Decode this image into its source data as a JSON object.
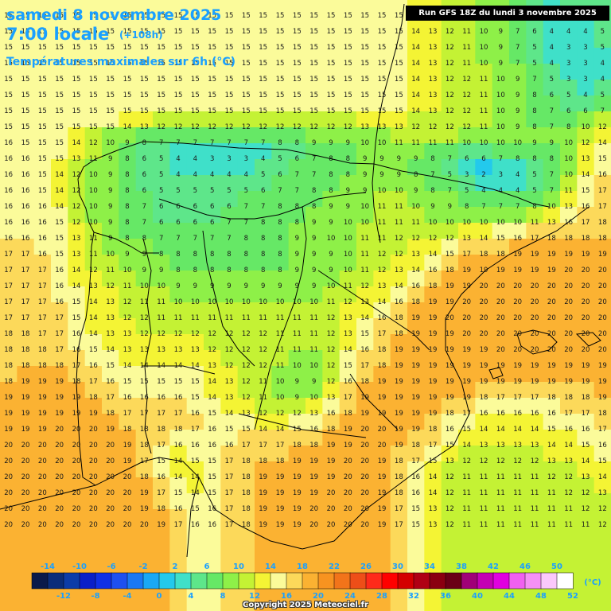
{
  "header": {
    "date": "samedi 8 novembre 2025",
    "time": "7:00 locale",
    "lead": "(+108h)",
    "subtitle": "Températures maximales sur 6h (°C)"
  },
  "run_info": "Run GFS 18Z du lundi 3 novembre 2025",
  "copyright": "Copyright 2025 Meteociel.fr",
  "legend": {
    "unit": "(°C)",
    "values": [
      -14,
      -12,
      -10,
      -8,
      -6,
      -4,
      -2,
      0,
      2,
      4,
      6,
      8,
      10,
      12,
      14,
      16,
      18,
      20,
      22,
      24,
      26,
      28,
      30,
      32,
      34,
      36,
      38,
      40,
      42,
      44,
      46,
      48,
      50,
      52
    ],
    "colors": [
      "#0a1a4a",
      "#0a2d7a",
      "#0c3ca8",
      "#0a1fc8",
      "#1030e6",
      "#1e50f0",
      "#1a78f5",
      "#1aa8f5",
      "#23c9ec",
      "#3fe0c9",
      "#5ee68a",
      "#66e866",
      "#8ef048",
      "#c4f234",
      "#f4f434",
      "#fbfb9a",
      "#fcd95a",
      "#fbb232",
      "#f79320",
      "#f2741a",
      "#ee4e18",
      "#ff2a1a",
      "#ff0000",
      "#d40000",
      "#b00014",
      "#8a0010",
      "#6a0016",
      "#a00078",
      "#c400b4",
      "#e000e0",
      "#f060f0",
      "#f590f5",
      "#fbc8fb",
      "#ffffff"
    ]
  },
  "map_data": {
    "grid": [
      "15 15 15 15 15 15 15 15 15 15 15 15 15 15 15 15 15 15 15 15 15 15 15 15 14 13 12 11 10 9 7 6 4 5 5 6",
      "15 15 15 15 15 15 15 15 15 15 15 15 15 15 15 15 15 15 15 15 15 15 15 15 14 13 12 11 10 9 7 6 4 4 4 5",
      "15 15 15 15 15 15 15 15 15 15 15 15 15 15 15 15 15 15 15 15 15 15 15 15 14 13 12 11 10 9 7 5 4 3 3 5",
      "15 15 15 15 15 15 15 15 15 15 15 15 15 15 15 15 15 15 15 15 15 15 15 15 14 13 12 11 10 9 7 5 4 3 3 4",
      "15 15 15 15 15 15 15 15 15 15 15 15 15 15 15 15 15 15 15 15 15 15 15 15 14 13 12 12 11 10 9 7 5 3 3 4",
      "15 15 15 15 15 15 15 15 15 15 15 15 15 15 15 15 15 15 15 15 15 15 15 15 14 13 12 12 11 10 9 8 6 5 4 5",
      "15 15 15 15 15 15 15 15 15 15 15 15 15 15 15 15 15 15 15 15 15 15 15 15 14 13 12 12 11 10 9 8 7 6 6 7",
      "15 15 15 15 15 15 15 14 13 12 12 12 12 12 12 12 12 12 12 12 12 13 13 13 12 12 12 12 11 10 9 8 7 8 10 12",
      "16 15 15 15 14 12 10 9 8 7 7 7 7 7 7 7 8 8 9 9 9 10 10 11 11 11 11 10 10 10 10 9 9 10 12 14",
      "16 16 15 15 13 11 9 8 6 5 4 4 3 3 3 4 5 6 7 8 8 9 9 9 9 8 7 6 6 7 8 8 8 10 13 15",
      "16 16 15 14 12 10 9 8 6 5 4 4 4 4 4 5 6 7 7 8 8 9 9 9 8 7 5 3 2 3 4 5 7 10 14 16",
      "16 16 15 14 12 10 9 8 6 5 5 5 5 5 5 6 7 7 8 8 9 9 10 10 9 8 7 5 4 4 4 5 7 11 15 17",
      "16 16 16 14 12 10 9 8 7 6 6 6 6 6 7 7 8 8 8 9 9 10 11 11 10 9 9 8 7 7 7 8 10 13 16 17",
      "16 16 16 15 12 10 9 8 7 6 6 6 6 7 7 8 8 8 9 9 10 10 11 11 11 10 10 10 10 10 10 11 13 16 17 18",
      "16 16 16 15 13 11 9 8 8 7 7 7 7 7 8 8 8 9 9 10 10 11 11 12 12 12 12 13 14 15 16 17 18 18 18 18",
      "17 17 16 15 13 11 10 9 9 8 8 8 8 8 8 8 8 9 9 9 10 11 12 12 13 14 15 17 18 18 19 19 19 19 19 19",
      "17 17 17 16 14 12 11 10 9 9 8 8 8 8 8 8 8 9 9 9 10 11 12 13 14 16 18 19 19 19 19 19 19 20 20 20",
      "17 17 17 16 14 13 12 11 10 10 9 9 9 9 9 9 9 9 9 10 11 12 13 14 16 18 19 19 20 20 20 20 20 20 20 20",
      "17 17 17 16 15 14 13 12 11 11 10 10 10 10 10 10 10 10 10 11 12 13 14 16 18 19 19 20 20 20 20 20 20 20 20 20",
      "17 17 17 17 15 14 13 12 12 11 11 11 11 11 11 11 11 11 11 12 13 14 16 18 19 19 20 20 20 20 20 20 20 20 20 20",
      "18 18 17 17 16 14 13 13 12 12 12 12 12 12 12 12 11 11 11 12 13 15 17 18 19 19 19 20 20 20 20 20 20 20 20 20",
      "18 18 18 17 16 15 14 13 13 13 13 13 12 12 12 12 11 11 11 12 14 16 18 19 19 19 19 19 19 20 20 20 20 20 20 20",
      "18 18 18 18 17 16 15 14 14 14 14 14 13 12 12 12 11 10 10 12 15 17 18 19 19 19 19 19 19 19 19 19 19 19 19 19",
      "18 19 19 19 18 17 16 15 15 15 15 15 14 13 12 11 10 9 9 12 16 18 19 19 19 19 19 19 19 19 19 19 19 19 19 19",
      "19 19 19 19 19 18 17 16 16 16 16 15 14 13 12 11 10 9 10 13 17 19 19 19 19 19 19 19 18 17 17 17 18 18 18 19",
      "19 19 19 19 19 19 18 17 17 17 17 16 15 14 13 12 12 12 13 16 18 19 19 19 19 19 18 17 16 16 16 16 16 17 17 18",
      "19 19 19 20 20 20 19 18 18 18 18 17 16 15 15 14 14 15 16 18 19 20 20 19 19 18 16 15 14 14 14 14 15 16 16 17",
      "20 20 20 20 20 20 20 19 18 17 16 16 16 16 17 17 17 18 18 19 19 20 20 19 18 17 15 14 13 13 13 13 14 14 15 16",
      "20 20 20 20 20 20 20 19 17 15 14 15 15 17 18 18 18 19 19 19 20 20 19 18 17 15 13 12 12 12 12 12 13 13 14 15",
      "20 20 20 20 20 20 20 20 18 16 14 14 15 17 18 19 19 19 19 19 20 20 19 18 16 14 12 11 11 11 11 11 12 12 13 14",
      "20 20 20 20 20 20 20 20 19 17 15 14 15 17 18 19 19 19 19 20 20 20 19 18 16 14 12 11 11 11 11 11 11 12 12 13",
      "20 20 20 20 20 20 20 20 19 18 16 15 16 17 18 19 19 19 20 20 20 20 19 17 15 13 12 11 11 11 11 11 11 11 12 12",
      "20 20 20 20 20 20 20 20 20 19 17 16 16 17 18 19 19 19 20 20 20 20 19 17 15 13 12 11 11 11 11 11 11 11 11 12"
    ]
  }
}
